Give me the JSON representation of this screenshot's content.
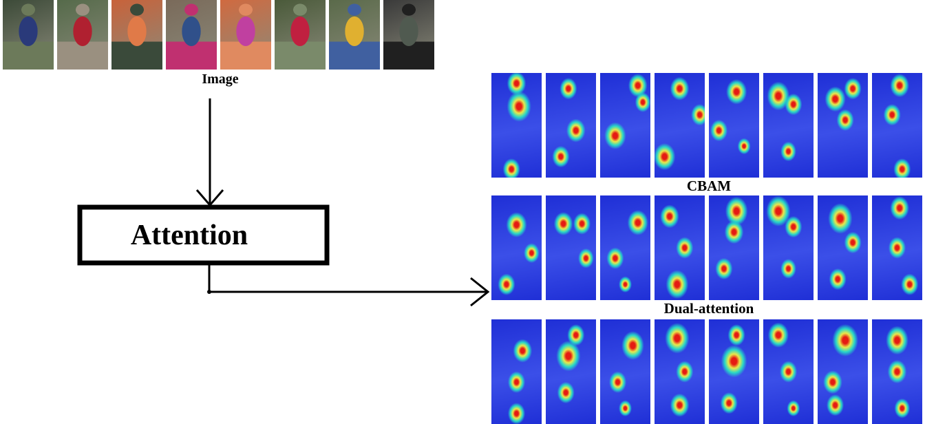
{
  "diagram": {
    "input_label": "Image",
    "module_label": "Attention",
    "rows": [
      {
        "caption": "CBAM"
      },
      {
        "caption": "Dual-attention"
      },
      {
        "caption": ""
      }
    ]
  },
  "colors": {
    "heat_cold": "#1f2fd6",
    "heat_mid": "#27d7c8",
    "heat_warm": "#e9e84a",
    "heat_hot": "#e51b12",
    "line": "#000000"
  },
  "photos": [
    {
      "palette": [
        "#3c4a38",
        "#2a3a7a",
        "#6c7a5a"
      ]
    },
    {
      "palette": [
        "#556a4a",
        "#b02030",
        "#9a9080"
      ]
    },
    {
      "palette": [
        "#c8623a",
        "#e07a48",
        "#3a4a3a"
      ]
    },
    {
      "palette": [
        "#7a6a5a",
        "#30508a",
        "#c03070"
      ]
    },
    {
      "palette": [
        "#d06a40",
        "#c040a0",
        "#e08a60"
      ]
    },
    {
      "palette": [
        "#4a5a3a",
        "#c02040",
        "#7a8a6a"
      ]
    },
    {
      "palette": [
        "#5a6a4a",
        "#e0b030",
        "#4060a0"
      ]
    },
    {
      "palette": [
        "#3a3a3a",
        "#505a50",
        "#202020"
      ]
    }
  ],
  "heatmaps": [
    [
      {
        "hot": [
          [
            0.55,
            0.32,
            0.28
          ],
          [
            0.5,
            0.1,
            0.22
          ],
          [
            0.4,
            0.92,
            0.2
          ]
        ]
      },
      {
        "hot": [
          [
            0.45,
            0.15,
            0.2
          ],
          [
            0.6,
            0.55,
            0.22
          ],
          [
            0.3,
            0.8,
            0.2
          ]
        ]
      },
      {
        "hot": [
          [
            0.75,
            0.12,
            0.22
          ],
          [
            0.85,
            0.28,
            0.18
          ],
          [
            0.3,
            0.6,
            0.25
          ]
        ]
      },
      {
        "hot": [
          [
            0.9,
            0.4,
            0.2
          ],
          [
            0.5,
            0.15,
            0.22
          ],
          [
            0.2,
            0.8,
            0.25
          ]
        ]
      },
      {
        "hot": [
          [
            0.55,
            0.18,
            0.24
          ],
          [
            0.2,
            0.55,
            0.2
          ],
          [
            0.7,
            0.7,
            0.15
          ]
        ]
      },
      {
        "hot": [
          [
            0.3,
            0.22,
            0.26
          ],
          [
            0.6,
            0.3,
            0.2
          ],
          [
            0.5,
            0.75,
            0.18
          ]
        ]
      },
      {
        "hot": [
          [
            0.35,
            0.25,
            0.24
          ],
          [
            0.55,
            0.45,
            0.2
          ],
          [
            0.7,
            0.15,
            0.2
          ]
        ]
      },
      {
        "hot": [
          [
            0.55,
            0.12,
            0.22
          ],
          [
            0.4,
            0.4,
            0.2
          ],
          [
            0.6,
            0.92,
            0.2
          ]
        ]
      }
    ],
    [
      {
        "hot": [
          [
            0.5,
            0.28,
            0.24
          ],
          [
            0.8,
            0.55,
            0.18
          ],
          [
            0.3,
            0.85,
            0.2
          ]
        ]
      },
      {
        "hot": [
          [
            0.35,
            0.27,
            0.22
          ],
          [
            0.72,
            0.27,
            0.2
          ],
          [
            0.8,
            0.6,
            0.18
          ]
        ]
      },
      {
        "hot": [
          [
            0.75,
            0.26,
            0.24
          ],
          [
            0.3,
            0.6,
            0.2
          ],
          [
            0.5,
            0.85,
            0.15
          ]
        ]
      },
      {
        "hot": [
          [
            0.45,
            0.85,
            0.26
          ],
          [
            0.3,
            0.2,
            0.22
          ],
          [
            0.6,
            0.5,
            0.2
          ]
        ]
      },
      {
        "hot": [
          [
            0.55,
            0.15,
            0.26
          ],
          [
            0.5,
            0.35,
            0.22
          ],
          [
            0.3,
            0.7,
            0.2
          ]
        ]
      },
      {
        "hot": [
          [
            0.3,
            0.15,
            0.28
          ],
          [
            0.6,
            0.3,
            0.2
          ],
          [
            0.5,
            0.7,
            0.18
          ]
        ]
      },
      {
        "hot": [
          [
            0.45,
            0.22,
            0.28
          ],
          [
            0.7,
            0.45,
            0.2
          ],
          [
            0.4,
            0.8,
            0.2
          ]
        ]
      },
      {
        "hot": [
          [
            0.55,
            0.12,
            0.22
          ],
          [
            0.5,
            0.5,
            0.2
          ],
          [
            0.75,
            0.85,
            0.2
          ]
        ]
      }
    ],
    [
      {
        "hot": [
          [
            0.62,
            0.3,
            0.22
          ],
          [
            0.5,
            0.6,
            0.2
          ],
          [
            0.5,
            0.9,
            0.2
          ]
        ]
      },
      {
        "hot": [
          [
            0.45,
            0.35,
            0.28
          ],
          [
            0.6,
            0.15,
            0.2
          ],
          [
            0.4,
            0.7,
            0.2
          ]
        ]
      },
      {
        "hot": [
          [
            0.65,
            0.25,
            0.26
          ],
          [
            0.35,
            0.6,
            0.2
          ],
          [
            0.5,
            0.85,
            0.15
          ]
        ]
      },
      {
        "hot": [
          [
            0.45,
            0.18,
            0.28
          ],
          [
            0.5,
            0.82,
            0.22
          ],
          [
            0.6,
            0.5,
            0.2
          ]
        ]
      },
      {
        "hot": [
          [
            0.5,
            0.4,
            0.3
          ],
          [
            0.55,
            0.15,
            0.2
          ],
          [
            0.4,
            0.8,
            0.2
          ]
        ]
      },
      {
        "hot": [
          [
            0.3,
            0.15,
            0.24
          ],
          [
            0.5,
            0.5,
            0.2
          ],
          [
            0.6,
            0.85,
            0.15
          ]
        ]
      },
      {
        "hot": [
          [
            0.55,
            0.2,
            0.3
          ],
          [
            0.3,
            0.6,
            0.22
          ],
          [
            0.35,
            0.82,
            0.2
          ]
        ]
      },
      {
        "hot": [
          [
            0.5,
            0.2,
            0.26
          ],
          [
            0.5,
            0.5,
            0.22
          ],
          [
            0.6,
            0.85,
            0.18
          ]
        ]
      }
    ]
  ]
}
